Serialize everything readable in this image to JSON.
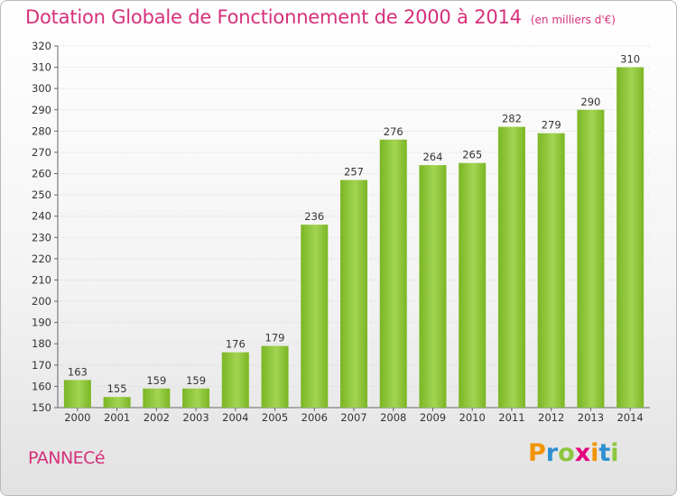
{
  "header": {
    "title": "Dotation Globale de Fonctionnement de 2000 à 2014",
    "unit": "(en milliers d'€)"
  },
  "commune": "PANNECé",
  "logo": {
    "text": "Proxiti",
    "letters": [
      {
        "ch": "P",
        "color": "#f29400"
      },
      {
        "ch": "r",
        "color": "#2e8fd1"
      },
      {
        "ch": "o",
        "color": "#8cc63f"
      },
      {
        "ch": "x",
        "color": "#e5007e"
      },
      {
        "ch": "i",
        "color": "#f29400"
      },
      {
        "ch": "t",
        "color": "#2e8fd1"
      },
      {
        "ch": "i",
        "color": "#8cc63f"
      }
    ]
  },
  "chart_data": {
    "type": "bar",
    "title": "Dotation Globale de Fonctionnement de 2000 à 2014",
    "categories": [
      "2000",
      "2001",
      "2002",
      "2003",
      "2004",
      "2005",
      "2006",
      "2007",
      "2008",
      "2009",
      "2010",
      "2011",
      "2012",
      "2013",
      "2014"
    ],
    "values": [
      163,
      155,
      159,
      159,
      176,
      179,
      236,
      257,
      276,
      264,
      265,
      282,
      279,
      290,
      310
    ],
    "ylim": [
      150,
      320
    ],
    "yticks": [
      150,
      160,
      170,
      180,
      190,
      200,
      210,
      220,
      230,
      240,
      250,
      260,
      270,
      280,
      290,
      300,
      310,
      320
    ],
    "grid": true,
    "bar_color": "#7ab624",
    "bar_color_light": "#a3d453"
  }
}
